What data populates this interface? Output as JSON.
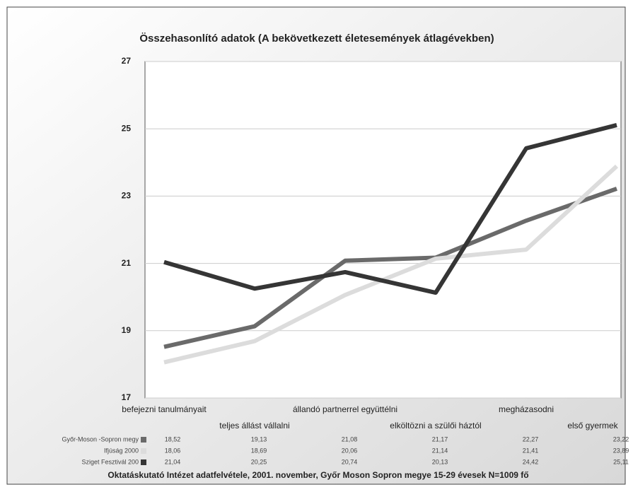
{
  "chart_data": {
    "type": "line",
    "title": "Összehasonlító adatok (A bekövetkezett életesemények átlagévekben)",
    "categories": [
      "befejezni tanulmányait",
      "teljes állást vállalni",
      "állandó partnerrel együttélni",
      "elköltözni a szülői háztól",
      "megházasodni",
      "első gyermek"
    ],
    "series": [
      {
        "name": "Győr-Moson -Sopron megy",
        "color": "#6a6a6a",
        "values": [
          18.52,
          19.13,
          21.08,
          21.17,
          22.27,
          23.22
        ],
        "value_labels": [
          "18,52",
          "19,13",
          "21,08",
          "21,17",
          "22,27",
          "23,22"
        ]
      },
      {
        "name": "Ifjúság 2000",
        "color": "#dcdcdc",
        "values": [
          18.06,
          18.69,
          20.06,
          21.14,
          21.41,
          23.89
        ],
        "value_labels": [
          "18,06",
          "18,69",
          "20,06",
          "21,14",
          "21,41",
          "23,89"
        ]
      },
      {
        "name": "Sziget Fesztivál 200",
        "color": "#353535",
        "values": [
          21.04,
          20.25,
          20.74,
          20.13,
          24.42,
          25.11
        ],
        "value_labels": [
          "21,04",
          "20,25",
          "20,74",
          "20,13",
          "24,42",
          "25,11"
        ]
      }
    ],
    "ylim": [
      17,
      27
    ],
    "yticks": [
      17,
      19,
      21,
      23,
      25,
      27
    ],
    "grid": true,
    "source": "Oktatáskutató Intézet adatfelvétele, 2001. november, Győr Moson Sopron megye 15-29 évesek N=1009 fő"
  }
}
